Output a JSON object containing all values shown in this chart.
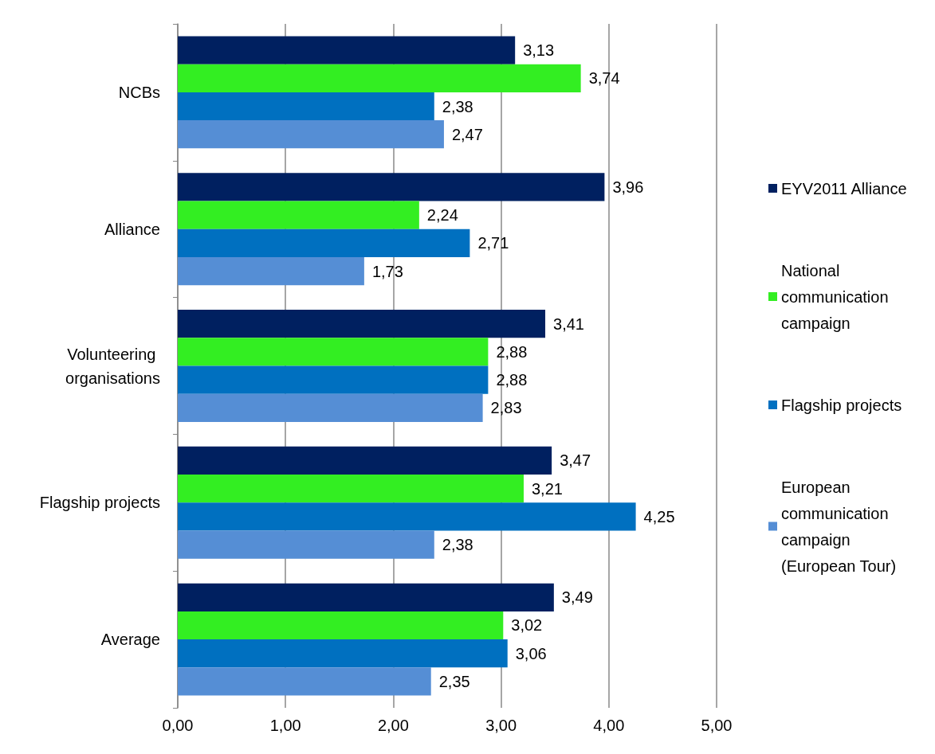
{
  "chart_data": {
    "type": "bar",
    "orientation": "horizontal",
    "categories": [
      "NCBs",
      "Alliance",
      "Volunteering organisations",
      "Flagship projects",
      "Average"
    ],
    "series": [
      {
        "name": "EYV2011 Alliance",
        "color": "#002060",
        "values": [
          3.13,
          3.96,
          3.41,
          3.47,
          3.49
        ],
        "value_labels": [
          "3,13",
          "3,96",
          "3,41",
          "3,47",
          "3,49"
        ]
      },
      {
        "name": "National communication campaign",
        "color": "#33ee22",
        "values": [
          3.74,
          2.24,
          2.88,
          3.21,
          3.02
        ],
        "value_labels": [
          "3,74",
          "2,24",
          "2,88",
          "3,21",
          "3,02"
        ]
      },
      {
        "name": "Flagship projects",
        "color": "#0070c0",
        "values": [
          2.38,
          2.71,
          2.88,
          4.25,
          3.06
        ],
        "value_labels": [
          "2,38",
          "2,71",
          "2,88",
          "4,25",
          "3,06"
        ]
      },
      {
        "name": "European communication campaign (European Tour)",
        "color": "#558ed5",
        "values": [
          2.47,
          1.73,
          2.83,
          2.38,
          2.35
        ],
        "value_labels": [
          "2,47",
          "1,73",
          "2,83",
          "2,38",
          "2,35"
        ]
      }
    ],
    "xlim": [
      0,
      5
    ],
    "xticks": [
      {
        "value": 0,
        "label": "0,00"
      },
      {
        "value": 1,
        "label": "1,00"
      },
      {
        "value": 2,
        "label": "2,00"
      },
      {
        "value": 3,
        "label": "3,00"
      },
      {
        "value": 4,
        "label": "4,00"
      },
      {
        "value": 5,
        "label": "5,00"
      }
    ],
    "grid": "x",
    "legend": "right"
  }
}
